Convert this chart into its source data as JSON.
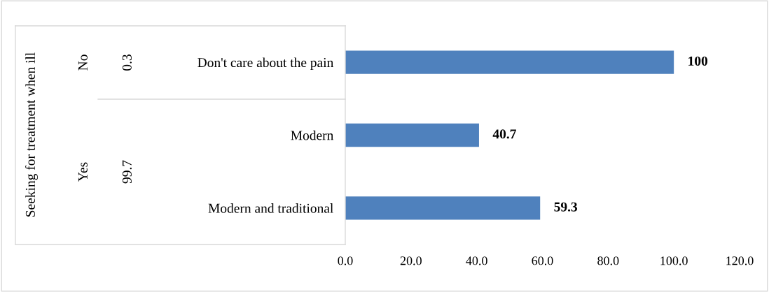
{
  "chart_data": {
    "type": "bar",
    "orientation": "horizontal",
    "categories": [
      "Don't care about the pain",
      "Modern",
      "Modern and traditional"
    ],
    "values": [
      100,
      40.7,
      59.3
    ],
    "color": "#4f81bd",
    "data_labels": true,
    "xlim": [
      0,
      120
    ],
    "xticks": [
      {
        "value": 0,
        "label": "0.0"
      },
      {
        "value": 20,
        "label": "20.0"
      },
      {
        "value": 40,
        "label": "40.0"
      },
      {
        "value": 60,
        "label": "60.0"
      },
      {
        "value": 80,
        "label": "80.0"
      },
      {
        "value": 100,
        "label": "100.0"
      },
      {
        "value": 120,
        "label": "120.0"
      }
    ],
    "annotations": [
      "Seeking for treatment when ill",
      "No",
      "0.3",
      "Yes",
      "99.7"
    ],
    "grid": false,
    "legend": false
  }
}
